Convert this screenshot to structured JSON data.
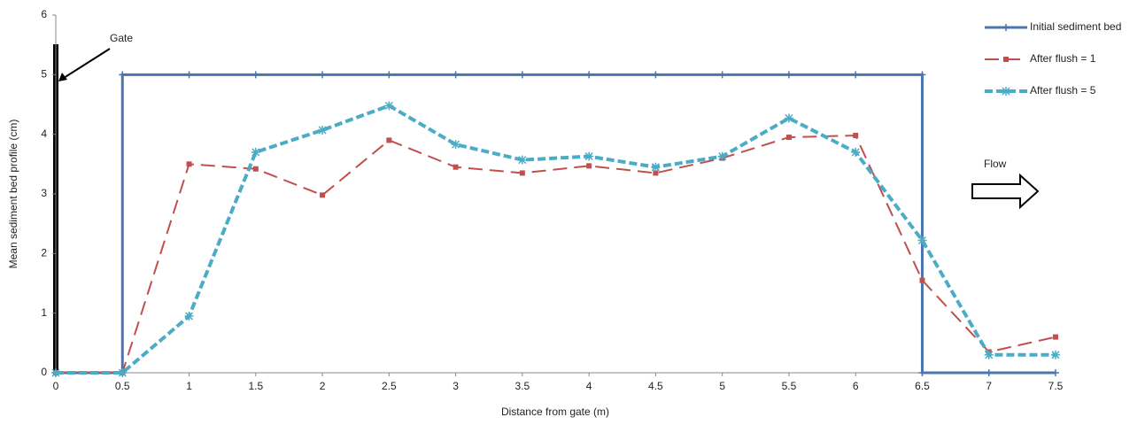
{
  "chart_data": {
    "type": "line",
    "xlabel": "Distance from gate (m)",
    "ylabel": "Mean sediment bed profile (cm)",
    "annotations": [
      "Gate",
      "Flow"
    ],
    "xlim": [
      0,
      7.5
    ],
    "xticks": [
      0,
      0.5,
      1,
      1.5,
      2,
      2.5,
      3,
      3.5,
      4,
      4.5,
      5,
      5.5,
      6,
      6.5,
      7,
      7.5
    ],
    "ylim": [
      0,
      6
    ],
    "yticks": [
      0,
      1,
      2,
      3,
      4,
      5,
      6
    ],
    "grid": false,
    "legend": "right",
    "series": [
      {
        "name": "Initial sediment bed",
        "color": "#4a76ad",
        "dash": "solid",
        "marker": "plus",
        "x": [
          0,
          0.5,
          0.5,
          1,
          1.5,
          2,
          2.5,
          3,
          3.5,
          4,
          4.5,
          5,
          5.5,
          6,
          6.5,
          6.5,
          7,
          7.5
        ],
        "values": [
          0,
          0,
          5,
          5,
          5,
          5,
          5,
          5,
          5,
          5,
          5,
          5,
          5,
          5,
          5,
          0,
          0,
          0
        ]
      },
      {
        "name": "After flush = 1",
        "color": "#c0504d",
        "dash": "long",
        "marker": "square",
        "x": [
          0,
          0.5,
          1,
          1.5,
          2,
          2.5,
          3,
          3.5,
          4,
          4.5,
          5,
          5.5,
          6,
          6.5,
          7,
          7.5
        ],
        "values": [
          0,
          0,
          3.5,
          3.42,
          2.98,
          3.9,
          3.45,
          3.35,
          3.47,
          3.35,
          3.6,
          3.95,
          3.98,
          1.55,
          0.35,
          0.6
        ]
      },
      {
        "name": "After flush = 5",
        "color": "#4bacc6",
        "dash": "short",
        "marker": "star",
        "x": [
          0,
          0.5,
          1,
          1.5,
          2,
          2.5,
          3,
          3.5,
          4,
          4.5,
          5,
          5.5,
          6,
          6.5,
          7,
          7.5
        ],
        "values": [
          0,
          0,
          0.95,
          3.7,
          4.07,
          4.48,
          3.83,
          3.57,
          3.63,
          3.45,
          3.63,
          4.27,
          3.7,
          2.22,
          0.3,
          0.3
        ]
      }
    ]
  }
}
